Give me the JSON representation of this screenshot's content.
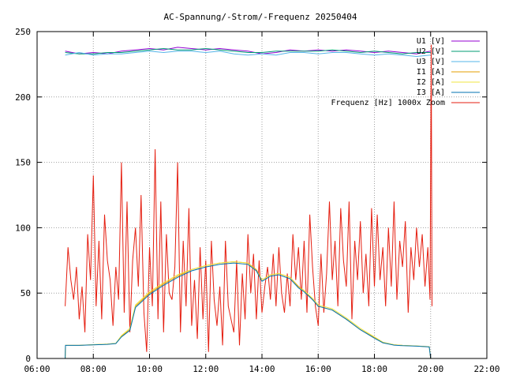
{
  "chart_data": {
    "type": "line",
    "title": "AC-Spannung/-Strom/-Frequenz 20250404",
    "x_axis": {
      "min_hours": 6,
      "max_hours": 22,
      "ticks": [
        "06:00",
        "08:00",
        "10:00",
        "12:00",
        "14:00",
        "16:00",
        "18:00",
        "20:00",
        "22:00"
      ]
    },
    "y_axis": {
      "min": 0,
      "max": 250,
      "ticks": [
        "0",
        "50",
        "100",
        "150",
        "200",
        "250"
      ]
    },
    "grid": true,
    "legend_placement": "top-right",
    "series": [
      {
        "name": "U1 [V]",
        "color": "#9400d3",
        "x_hours": [
          7.0,
          7.5,
          8.0,
          8.5,
          9.0,
          9.5,
          10.0,
          10.5,
          11.0,
          11.5,
          12.0,
          12.5,
          13.0,
          13.5,
          14.0,
          14.5,
          15.0,
          15.5,
          16.0,
          16.5,
          17.0,
          17.5,
          18.0,
          18.5,
          19.0,
          19.5,
          20.0
        ],
        "values": [
          235,
          233,
          234,
          233,
          235,
          236,
          237,
          236,
          238,
          237,
          236,
          237,
          236,
          235,
          233,
          234,
          236,
          235,
          236,
          235,
          236,
          235,
          234,
          235,
          234,
          233,
          235
        ]
      },
      {
        "name": "U2 [V]",
        "color": "#009e73",
        "x_hours": [
          7.0,
          7.5,
          8.0,
          8.5,
          9.0,
          9.5,
          10.0,
          10.5,
          11.0,
          11.5,
          12.0,
          12.5,
          13.0,
          13.5,
          14.0,
          14.5,
          15.0,
          15.5,
          16.0,
          16.5,
          17.0,
          17.5,
          18.0,
          18.5,
          19.0,
          19.5,
          20.0
        ],
        "values": [
          234,
          233,
          233,
          234,
          234,
          235,
          236,
          237,
          236,
          236,
          237,
          236,
          235,
          234,
          234,
          235,
          235,
          235,
          235,
          236,
          235,
          234,
          235,
          234,
          233,
          234,
          234
        ]
      },
      {
        "name": "U3 [V]",
        "color": "#56b4e9",
        "x_hours": [
          7.0,
          7.5,
          8.0,
          8.5,
          9.0,
          9.5,
          10.0,
          10.5,
          11.0,
          11.5,
          12.0,
          12.5,
          13.0,
          13.5,
          14.0,
          14.5,
          15.0,
          15.5,
          16.0,
          16.5,
          17.0,
          17.5,
          18.0,
          18.5,
          19.0,
          19.5,
          20.0
        ],
        "values": [
          232,
          234,
          232,
          233,
          233,
          234,
          235,
          234,
          235,
          235,
          234,
          235,
          233,
          232,
          233,
          232,
          234,
          234,
          233,
          234,
          234,
          233,
          232,
          233,
          232,
          231,
          232
        ]
      },
      {
        "name": "I1 [A]",
        "color": "#e69f00",
        "x_hours": [
          7.0,
          7.01,
          7.5,
          8.0,
          8.5,
          8.8,
          9.0,
          9.3,
          9.5,
          10.0,
          10.5,
          11.0,
          11.5,
          12.0,
          12.5,
          13.0,
          13.5,
          13.8,
          14.0,
          14.3,
          14.6,
          15.0,
          15.3,
          15.5,
          15.8,
          16.0,
          16.5,
          17.0,
          17.5,
          18.0,
          18.3,
          18.7,
          19.0,
          19.5,
          19.95,
          20.0
        ],
        "values": [
          0,
          10,
          10,
          10.5,
          11,
          11.5,
          17,
          22,
          40,
          50,
          57,
          63,
          68,
          71,
          73,
          74,
          73,
          68,
          60,
          64,
          65,
          62,
          55,
          52,
          45,
          40,
          37,
          30,
          22,
          16,
          12,
          10.5,
          10,
          9.5,
          9,
          0
        ]
      },
      {
        "name": "I2 [A]",
        "color": "#f0e442",
        "x_hours": [
          7.0,
          7.01,
          7.5,
          8.0,
          8.5,
          8.8,
          9.0,
          9.3,
          9.5,
          10.0,
          10.5,
          11.0,
          11.5,
          12.0,
          12.5,
          13.0,
          13.5,
          13.8,
          14.0,
          14.3,
          14.6,
          15.0,
          15.3,
          15.5,
          15.8,
          16.0,
          16.5,
          17.0,
          17.5,
          18.0,
          18.3,
          18.7,
          19.0,
          19.5,
          19.95,
          20.0
        ],
        "values": [
          0,
          10,
          10,
          10.6,
          11,
          11.6,
          17.5,
          23,
          41,
          51,
          58,
          64,
          68,
          71,
          73,
          74,
          73,
          67,
          60,
          64,
          65,
          62,
          54,
          52,
          46,
          41,
          38,
          31,
          23,
          16.5,
          12.5,
          10.5,
          10,
          9.6,
          9,
          0
        ]
      },
      {
        "name": "I3 [A]",
        "color": "#0072b2",
        "x_hours": [
          7.0,
          7.01,
          7.5,
          8.0,
          8.5,
          8.8,
          9.0,
          9.3,
          9.5,
          10.0,
          10.5,
          11.0,
          11.5,
          12.0,
          12.5,
          13.0,
          13.5,
          13.8,
          14.0,
          14.3,
          14.6,
          15.0,
          15.3,
          15.5,
          15.8,
          16.0,
          16.5,
          17.0,
          17.5,
          18.0,
          18.3,
          18.7,
          19.0,
          19.5,
          19.95,
          20.0
        ],
        "values": [
          0,
          10,
          10,
          10.4,
          10.8,
          11.4,
          16.5,
          21.5,
          39,
          49,
          56,
          62,
          67,
          70,
          72,
          73,
          72,
          67,
          59,
          63,
          64,
          61,
          54,
          51,
          45,
          40,
          37,
          30,
          22,
          15.5,
          12,
          10.2,
          9.8,
          9.4,
          8.8,
          0
        ]
      },
      {
        "name": "Frequenz [Hz] 1000x Zoom",
        "color": "#e51e10",
        "x_hours": [
          7.0,
          7.1,
          7.2,
          7.3,
          7.4,
          7.5,
          7.6,
          7.7,
          7.8,
          7.9,
          8.0,
          8.1,
          8.2,
          8.3,
          8.4,
          8.5,
          8.6,
          8.7,
          8.8,
          8.9,
          9.0,
          9.1,
          9.2,
          9.3,
          9.4,
          9.5,
          9.6,
          9.7,
          9.8,
          9.9,
          10.0,
          10.1,
          10.2,
          10.3,
          10.4,
          10.5,
          10.6,
          10.7,
          10.8,
          10.9,
          11.0,
          11.1,
          11.2,
          11.3,
          11.4,
          11.5,
          11.6,
          11.7,
          11.8,
          11.9,
          12.0,
          12.1,
          12.2,
          12.3,
          12.4,
          12.5,
          12.6,
          12.7,
          12.8,
          12.9,
          13.0,
          13.1,
          13.2,
          13.3,
          13.4,
          13.5,
          13.6,
          13.7,
          13.8,
          13.9,
          14.0,
          14.1,
          14.2,
          14.3,
          14.4,
          14.5,
          14.6,
          14.7,
          14.8,
          14.9,
          15.0,
          15.1,
          15.2,
          15.3,
          15.4,
          15.5,
          15.6,
          15.7,
          15.8,
          15.9,
          16.0,
          16.1,
          16.2,
          16.3,
          16.4,
          16.5,
          16.6,
          16.7,
          16.8,
          16.9,
          17.0,
          17.1,
          17.2,
          17.3,
          17.4,
          17.5,
          17.6,
          17.7,
          17.8,
          17.9,
          18.0,
          18.1,
          18.2,
          18.3,
          18.4,
          18.5,
          18.6,
          18.7,
          18.8,
          18.9,
          19.0,
          19.1,
          19.2,
          19.3,
          19.4,
          19.5,
          19.6,
          19.7,
          19.8,
          19.9,
          19.98,
          20.02,
          20.05
        ],
        "values": [
          40,
          85,
          60,
          45,
          70,
          30,
          55,
          20,
          95,
          60,
          140,
          40,
          90,
          30,
          110,
          75,
          60,
          25,
          70,
          45,
          150,
          35,
          120,
          20,
          75,
          100,
          55,
          125,
          35,
          5,
          85,
          40,
          160,
          30,
          120,
          20,
          95,
          50,
          45,
          70,
          150,
          20,
          90,
          40,
          115,
          25,
          60,
          15,
          85,
          30,
          75,
          5,
          90,
          45,
          25,
          55,
          10,
          90,
          40,
          30,
          20,
          75,
          10,
          65,
          30,
          95,
          50,
          80,
          30,
          75,
          35,
          55,
          70,
          45,
          80,
          40,
          85,
          50,
          35,
          65,
          40,
          95,
          60,
          85,
          45,
          90,
          35,
          110,
          70,
          40,
          25,
          80,
          35,
          65,
          120,
          60,
          90,
          40,
          115,
          75,
          55,
          120,
          30,
          90,
          60,
          105,
          50,
          80,
          40,
          115,
          55,
          110,
          60,
          85,
          40,
          100,
          55,
          120,
          45,
          90,
          70,
          105,
          35,
          85,
          60,
          100,
          70,
          95,
          55,
          85,
          45,
          240,
          40
        ]
      }
    ]
  }
}
